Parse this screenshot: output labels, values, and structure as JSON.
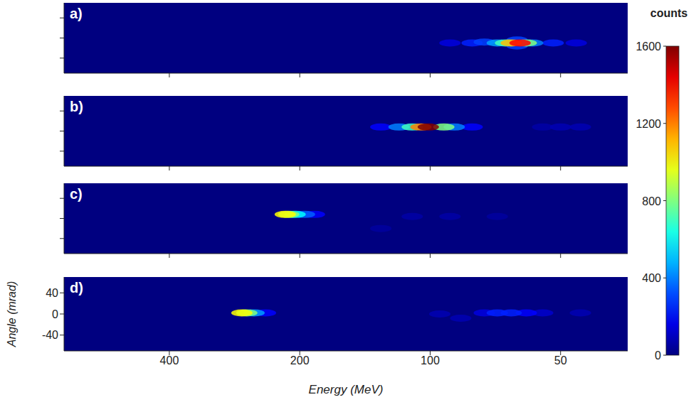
{
  "chart_data": [
    {
      "type": "heatmap",
      "title": "a)",
      "xlim": [
        700,
        35
      ],
      "xticks": [
        400,
        200,
        100,
        50
      ],
      "ylim": [
        -70,
        70
      ],
      "yticks": [
        -40,
        0,
        40
      ],
      "log": "x",
      "grid": false,
      "tick_labels": false,
      "colorbar": {
        "label": "counts",
        "range": [
          0,
          1600
        ],
        "ticks": [
          0,
          400,
          800,
          1200,
          1600
        ]
      },
      "cells": [
        {
          "x": 90,
          "y": -10,
          "value": 150
        },
        {
          "x": 46,
          "y": -10,
          "value": 150
        },
        {
          "x": 80,
          "y": -10,
          "value": 250
        },
        {
          "x": 52,
          "y": -10,
          "value": 250
        },
        {
          "x": 75,
          "y": -8,
          "value": 300
        },
        {
          "x": 63,
          "y": -4,
          "value": 300
        },
        {
          "x": 63,
          "y": -16,
          "value": 300
        },
        {
          "x": 58,
          "y": -10,
          "value": 400
        },
        {
          "x": 70,
          "y": -10,
          "value": 450
        },
        {
          "x": 67,
          "y": -10,
          "value": 700
        },
        {
          "x": 60,
          "y": -10,
          "value": 800
        },
        {
          "x": 65,
          "y": -10,
          "value": 1100
        },
        {
          "x": 62,
          "y": -10,
          "value": 1400
        }
      ]
    },
    {
      "type": "heatmap",
      "title": "b)",
      "xlim": [
        700,
        35
      ],
      "xticks": [
        400,
        200,
        100,
        50
      ],
      "ylim": [
        -70,
        70
      ],
      "yticks": [
        -40,
        0,
        40
      ],
      "log": "x",
      "grid": false,
      "tick_labels": false,
      "cells": [
        {
          "x": 55,
          "y": 8,
          "value": 60
        },
        {
          "x": 50,
          "y": 8,
          "value": 80
        },
        {
          "x": 45,
          "y": 8,
          "value": 80
        },
        {
          "x": 130,
          "y": 8,
          "value": 200
        },
        {
          "x": 80,
          "y": 8,
          "value": 200
        },
        {
          "x": 118,
          "y": 8,
          "value": 400
        },
        {
          "x": 88,
          "y": 8,
          "value": 400
        },
        {
          "x": 110,
          "y": 8,
          "value": 700
        },
        {
          "x": 93,
          "y": 8,
          "value": 800
        },
        {
          "x": 105,
          "y": 8,
          "value": 1200
        },
        {
          "x": 101,
          "y": 8,
          "value": 1600
        }
      ]
    },
    {
      "type": "heatmap",
      "title": "c)",
      "xlim": [
        700,
        35
      ],
      "xticks": [
        400,
        200,
        100,
        50
      ],
      "ylim": [
        -70,
        70
      ],
      "yticks": [
        -40,
        0,
        40
      ],
      "log": "x",
      "grid": false,
      "tick_labels": false,
      "cells": [
        {
          "x": 130,
          "y": -20,
          "value": 50
        },
        {
          "x": 70,
          "y": 4,
          "value": 50
        },
        {
          "x": 110,
          "y": 4,
          "value": 60
        },
        {
          "x": 90,
          "y": 4,
          "value": 60
        },
        {
          "x": 185,
          "y": 8,
          "value": 200
        },
        {
          "x": 195,
          "y": 8,
          "value": 350
        },
        {
          "x": 205,
          "y": 8,
          "value": 600
        },
        {
          "x": 212,
          "y": 8,
          "value": 800
        },
        {
          "x": 216,
          "y": 8,
          "value": 1000
        }
      ]
    },
    {
      "type": "heatmap",
      "title": "d)",
      "x_label": "Energy (MeV)",
      "y_label": "Angle (mrad)",
      "xlim": [
        700,
        35
      ],
      "xticks": [
        400,
        200,
        100,
        50
      ],
      "ylim": [
        -70,
        70
      ],
      "yticks": [
        -40,
        0,
        40
      ],
      "log": "x",
      "grid": false,
      "cells": [
        {
          "x": 95,
          "y": 0,
          "value": 80
        },
        {
          "x": 85,
          "y": -8,
          "value": 80
        },
        {
          "x": 45,
          "y": 2,
          "value": 80
        },
        {
          "x": 55,
          "y": 2,
          "value": 120
        },
        {
          "x": 75,
          "y": 2,
          "value": 150
        },
        {
          "x": 60,
          "y": 2,
          "value": 200
        },
        {
          "x": 240,
          "y": 2,
          "value": 200
        },
        {
          "x": 70,
          "y": 2,
          "value": 250
        },
        {
          "x": 65,
          "y": 2,
          "value": 250
        },
        {
          "x": 255,
          "y": 2,
          "value": 450
        },
        {
          "x": 265,
          "y": 2,
          "value": 800
        },
        {
          "x": 272,
          "y": 2,
          "value": 1000
        }
      ]
    }
  ]
}
